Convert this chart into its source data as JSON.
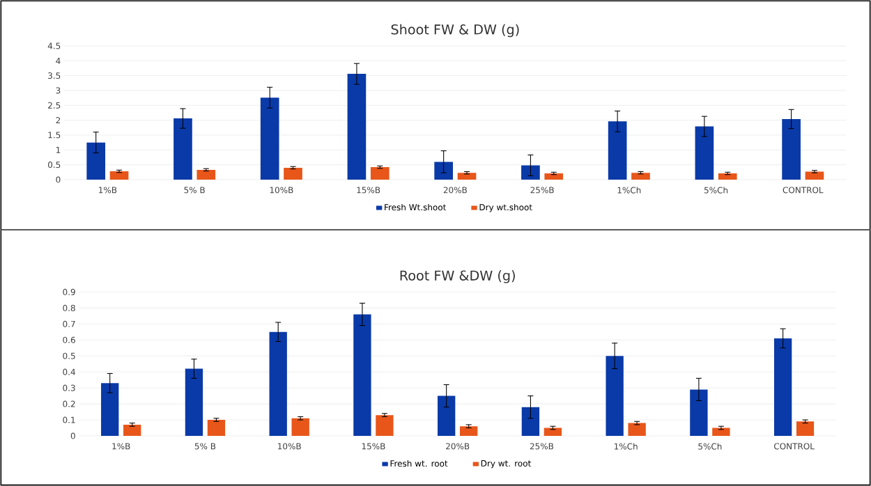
{
  "chart_data": [
    {
      "type": "bar",
      "title": "Shoot FW & DW (g)",
      "categories": [
        "1%B",
        "5% B",
        "10%B",
        "15%B",
        "20%B",
        "25%B",
        "1%Ch",
        "5%Ch",
        "CONTROL"
      ],
      "series": [
        {
          "name": "Fresh Wt.shoot",
          "color": "#0a3aa8",
          "values": [
            1.25,
            2.06,
            2.76,
            3.56,
            0.6,
            0.48,
            1.96,
            1.79,
            2.04
          ],
          "errors": [
            0.35,
            0.33,
            0.35,
            0.35,
            0.37,
            0.35,
            0.35,
            0.34,
            0.32
          ]
        },
        {
          "name": "Dry wt.shoot",
          "color": "#e8561a",
          "values": [
            0.28,
            0.33,
            0.4,
            0.42,
            0.23,
            0.21,
            0.23,
            0.21,
            0.27
          ],
          "errors": [
            0.04,
            0.04,
            0.04,
            0.04,
            0.04,
            0.04,
            0.04,
            0.04,
            0.04
          ]
        }
      ],
      "ylim": [
        0,
        4.5
      ],
      "yticks": [
        0,
        0.5,
        1,
        1.5,
        2,
        2.5,
        3,
        3.5,
        4,
        4.5
      ],
      "grid": "y",
      "legend": "bottom"
    },
    {
      "type": "bar",
      "title": "Root FW &DW (g)",
      "categories": [
        "1%B",
        "5% B",
        "10%B",
        "15%B",
        "20%B",
        "25%B",
        "1%Ch",
        "5%Ch",
        "CONTROL"
      ],
      "series": [
        {
          "name": "Fresh wt. root",
          "color": "#0a3aa8",
          "values": [
            0.33,
            0.42,
            0.65,
            0.76,
            0.25,
            0.18,
            0.5,
            0.29,
            0.61
          ],
          "errors": [
            0.06,
            0.06,
            0.06,
            0.07,
            0.07,
            0.07,
            0.08,
            0.07,
            0.06
          ]
        },
        {
          "name": "Dry wt. root",
          "color": "#e8561a",
          "values": [
            0.07,
            0.1,
            0.11,
            0.13,
            0.06,
            0.05,
            0.08,
            0.05,
            0.09
          ],
          "errors": [
            0.01,
            0.01,
            0.01,
            0.01,
            0.01,
            0.01,
            0.01,
            0.01,
            0.01
          ]
        }
      ],
      "ylim": [
        0,
        0.9
      ],
      "yticks": [
        0,
        0.1,
        0.2,
        0.3,
        0.4,
        0.5,
        0.6,
        0.7,
        0.8,
        0.9
      ],
      "grid": "y",
      "legend": "bottom"
    }
  ]
}
